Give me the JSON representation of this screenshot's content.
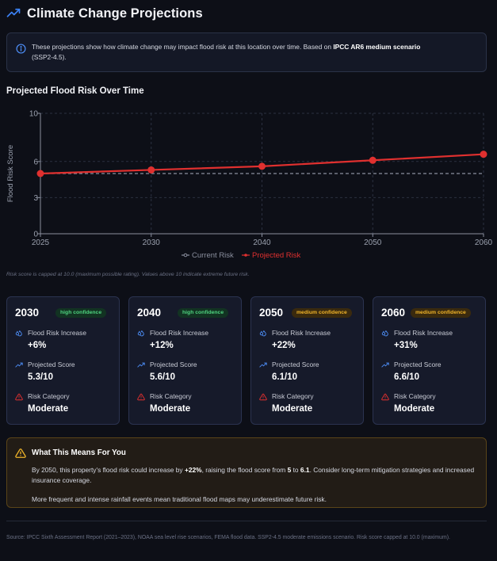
{
  "header": {
    "title": "Climate Change Projections",
    "icon": "trending-up-icon"
  },
  "info": {
    "text_prefix": "These projections show how climate change may impact flood risk at this location over time. Based on ",
    "text_bold": "IPCC AR6 medium scenario",
    "text_suffix": "(SSP2-4.5)."
  },
  "chart_section": {
    "title": "Projected Flood Risk Over Time",
    "note": "Risk score is capped at 10.0 (maximum possible rating). Values above 10 indicate extreme future risk."
  },
  "chart_data": {
    "type": "line",
    "title": "Projected Flood Risk Over Time",
    "xlabel": "",
    "ylabel": "Flood Risk Score",
    "x": [
      "2025",
      "2030",
      "2040",
      "2050",
      "2060"
    ],
    "ylim": [
      0,
      10
    ],
    "yticks": [
      0,
      3,
      6,
      10
    ],
    "grid": true,
    "legend_position": "bottom-center",
    "series": [
      {
        "name": "Current Risk",
        "values": [
          5,
          5,
          5,
          5,
          5
        ],
        "color": "#8a8f9e",
        "style": "dashed"
      },
      {
        "name": "Projected Risk",
        "values": [
          5.0,
          5.3,
          5.6,
          6.1,
          6.6
        ],
        "color": "#e0302f",
        "style": "solid"
      }
    ]
  },
  "cards": [
    {
      "year": "2030",
      "confidence": "high confidence",
      "level": "high",
      "increase_label": "Flood Risk Increase",
      "increase": "+6%",
      "score_label": "Projected Score",
      "score": "5.3/10",
      "category_label": "Risk Category",
      "category": "Moderate"
    },
    {
      "year": "2040",
      "confidence": "high confidence",
      "level": "high",
      "increase_label": "Flood Risk Increase",
      "increase": "+12%",
      "score_label": "Projected Score",
      "score": "5.6/10",
      "category_label": "Risk Category",
      "category": "Moderate"
    },
    {
      "year": "2050",
      "confidence": "medium confidence",
      "level": "medium",
      "increase_label": "Flood Risk Increase",
      "increase": "+22%",
      "score_label": "Projected Score",
      "score": "6.1/10",
      "category_label": "Risk Category",
      "category": "Moderate"
    },
    {
      "year": "2060",
      "confidence": "medium confidence",
      "level": "medium",
      "increase_label": "Flood Risk Increase",
      "increase": "+31%",
      "score_label": "Projected Score",
      "score": "6.6/10",
      "category_label": "Risk Category",
      "category": "Moderate"
    }
  ],
  "meaning": {
    "title": "What This Means For You",
    "p1_a": "By 2050, this property's flood risk could increase by ",
    "p1_b": "+22%",
    "p1_c": ", raising the flood score from ",
    "p1_d": "5",
    "p1_e": " to ",
    "p1_f": "6.1",
    "p1_g": ". Consider long-term mitigation strategies and increased insurance coverage.",
    "p2": "More frequent and intense rainfall events mean traditional flood maps may underestimate future risk."
  },
  "footer": {
    "source": "Source: IPCC Sixth Assessment Report (2021–2023), NOAA sea level rise scenarios, FEMA flood data. SSP2-4.5 moderate emissions scenario. Risk score capped at 10.0 (maximum)."
  },
  "colors": {
    "accent": "#3b82f6",
    "projected": "#e0302f",
    "current": "#8a8f9e",
    "high": "#4fd37f",
    "medium": "#f0b429"
  }
}
